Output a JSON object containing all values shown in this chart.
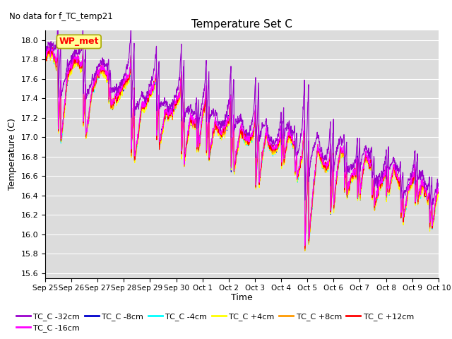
{
  "title": "Temperature Set C",
  "suptitle": "No data for f_TC_temp21",
  "ylabel": "Temperature (C)",
  "xlabel": "Time",
  "ylim": [
    15.55,
    18.1
  ],
  "yticks": [
    15.6,
    15.8,
    16.0,
    16.2,
    16.4,
    16.6,
    16.8,
    17.0,
    17.2,
    17.4,
    17.6,
    17.8,
    18.0
  ],
  "bg_color": "#dcdcdc",
  "series_colors": {
    "TC_C -32cm": "#9900cc",
    "TC_C -16cm": "#ff00ff",
    "TC_C -8cm": "#0000cc",
    "TC_C -4cm": "#00ffff",
    "TC_C +4cm": "#ffff00",
    "TC_C +8cm": "#ff9900",
    "TC_C +12cm": "#ff0000"
  },
  "wp_met_color": "#ff0000",
  "wp_met_bg": "#ffff99",
  "n_points": 1500,
  "xtick_labels": [
    "Sep 25",
    "Sep 26",
    "Sep 27",
    "Sep 28",
    "Sep 29",
    "Sep 30",
    "Oct 1",
    "Oct 2",
    "Oct 3",
    "Oct 4",
    "Oct 5",
    "Oct 6",
    "Oct 7",
    "Oct 8",
    "Oct 9",
    "Oct 10"
  ],
  "grid_color": "#ffffff",
  "line_width": 0.8
}
